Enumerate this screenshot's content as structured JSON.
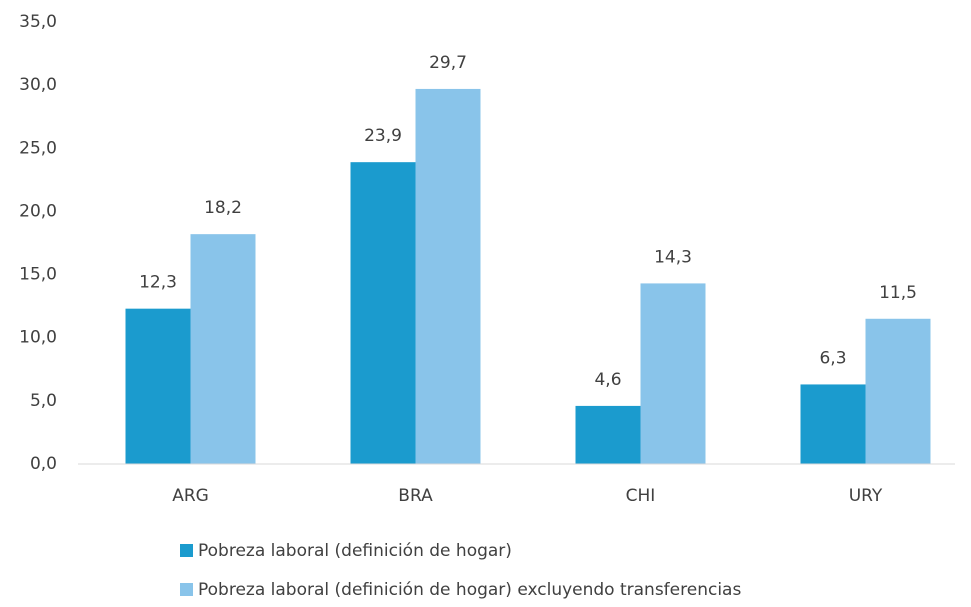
{
  "chart_data": {
    "type": "bar",
    "categories": [
      "ARG",
      "BRA",
      "CHI",
      "URY"
    ],
    "series": [
      {
        "name": "Pobreza laboral (definición de hogar)",
        "color": "#1b9bce",
        "values": [
          12.3,
          23.9,
          4.6,
          6.3
        ],
        "value_labels": [
          "12,3",
          "23,9",
          "4,6",
          "6,3"
        ]
      },
      {
        "name": "Pobreza laboral (definición de hogar) excluyendo transferencias",
        "color": "#89c4ea",
        "values": [
          18.2,
          29.7,
          14.3,
          11.5
        ],
        "value_labels": [
          "18,2",
          "29,7",
          "14,3",
          "11,5"
        ]
      }
    ],
    "ylim": [
      0,
      35
    ],
    "yticks": [
      {
        "value": 0,
        "label": "0,0"
      },
      {
        "value": 5,
        "label": "5,0"
      },
      {
        "value": 10,
        "label": "10,0"
      },
      {
        "value": 15,
        "label": "15,0"
      },
      {
        "value": 20,
        "label": "20,0"
      },
      {
        "value": 25,
        "label": "25,0"
      },
      {
        "value": 30,
        "label": "30,0"
      },
      {
        "value": 35,
        "label": "35,0"
      }
    ],
    "grid": false,
    "legend": "bottom"
  }
}
